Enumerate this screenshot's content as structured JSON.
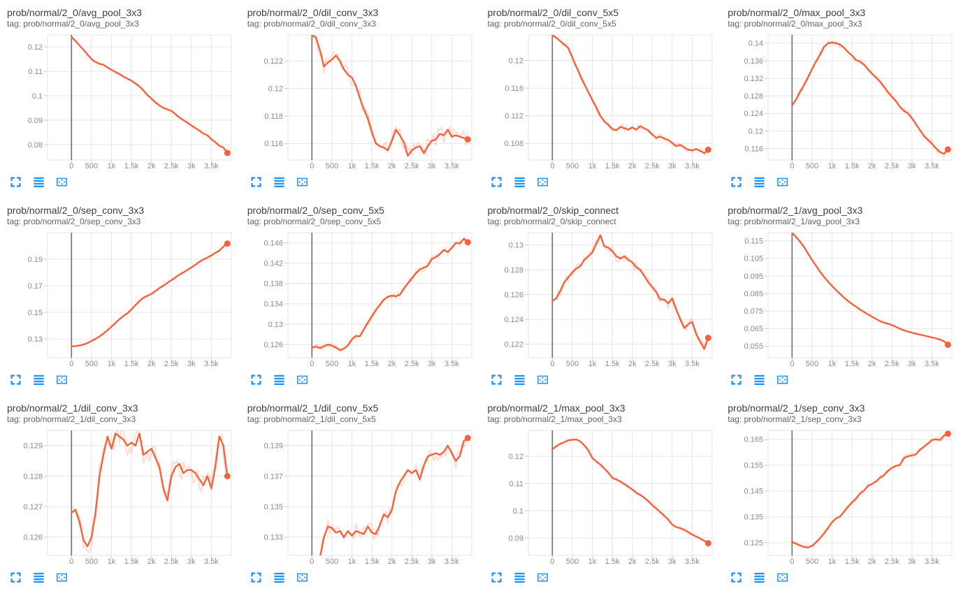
{
  "page": {
    "background": "#ffffff"
  },
  "colors": {
    "accent": "#f6623c",
    "accent_faint": "rgba(246,98,60,0.22)",
    "icon_blue": "#2196f3",
    "grid": "#e6e6e6",
    "tick": "#c9c9c9",
    "axis_text": "#8a8a8a",
    "zero_line": "#6e6e6e",
    "title_text": "#3d3d3d",
    "tag_text": "#616161"
  },
  "x_axis": {
    "xlim": [
      -600,
      4000
    ],
    "tick_values": [
      0,
      500,
      1000,
      1500,
      2000,
      2500,
      3000,
      3500
    ],
    "tick_labels": [
      "0",
      "500",
      "1k",
      "1.5k",
      "2k",
      "2.5k",
      "3k",
      "3.5k"
    ]
  },
  "card_icons": [
    {
      "name": "fullscreen-icon"
    },
    {
      "name": "data-series-icon"
    },
    {
      "name": "fit-domain-icon"
    }
  ],
  "chart_data": [
    {
      "type": "line",
      "title": "prob/normal/2_0/avg_pool_3x3",
      "tag": "tag: prob/normal/2_0/avg_pool_3x3",
      "y_ticks": [
        "0.12",
        "0.11",
        "0.1",
        "0.09",
        "0.08"
      ],
      "ylim": [
        0.0737,
        0.1249
      ],
      "x0": 0,
      "dx": 100,
      "noise": 0.0003,
      "values": [
        0.1241,
        0.1224,
        0.1206,
        0.1188,
        0.1169,
        0.115,
        0.1138,
        0.1131,
        0.1127,
        0.1116,
        0.1106,
        0.1097,
        0.1089,
        0.1078,
        0.107,
        0.1062,
        0.105,
        0.1038,
        0.1022,
        0.1003,
        0.0988,
        0.0973,
        0.096,
        0.095,
        0.0944,
        0.0938,
        0.0925,
        0.0911,
        0.09,
        0.089,
        0.0878,
        0.0868,
        0.0857,
        0.0845,
        0.0838,
        0.0822,
        0.081,
        0.0795,
        0.0788,
        0.0766
      ]
    },
    {
      "type": "line",
      "title": "prob/normal/2_0/dil_conv_3x3",
      "tag": "tag: prob/normal/2_0/dil_conv_3x3",
      "y_ticks": [
        "0.122",
        "0.12",
        "0.118",
        "0.116"
      ],
      "ylim": [
        0.1148,
        0.1239
      ],
      "x0": 0,
      "dx": 100,
      "noise": 0.0006,
      "values": [
        0.1239,
        0.1237,
        0.1228,
        0.1216,
        0.1219,
        0.1221,
        0.1224,
        0.122,
        0.1214,
        0.121,
        0.1208,
        0.1202,
        0.1193,
        0.1185,
        0.1178,
        0.1168,
        0.116,
        0.1158,
        0.1157,
        0.1155,
        0.1162,
        0.117,
        0.1166,
        0.1161,
        0.1151,
        0.1155,
        0.1157,
        0.1158,
        0.1153,
        0.1158,
        0.1162,
        0.1163,
        0.1167,
        0.1166,
        0.117,
        0.1165,
        0.1166,
        0.1165,
        0.1164,
        0.1163
      ]
    },
    {
      "type": "line",
      "title": "prob/normal/2_0/dil_conv_5x5",
      "tag": "tag: prob/normal/2_0/dil_conv_5x5",
      "y_ticks": [
        "0.12",
        "0.116",
        "0.112",
        "0.108"
      ],
      "ylim": [
        0.1056,
        0.1237
      ],
      "x0": 0,
      "dx": 100,
      "noise": 0.0004,
      "values": [
        0.1237,
        0.1233,
        0.1228,
        0.1223,
        0.1218,
        0.1204,
        0.1191,
        0.1178,
        0.1166,
        0.1154,
        0.1143,
        0.1132,
        0.112,
        0.1112,
        0.1107,
        0.1101,
        0.1099,
        0.1104,
        0.1102,
        0.11,
        0.1103,
        0.11,
        0.1105,
        0.1102,
        0.1099,
        0.1093,
        0.1088,
        0.109,
        0.1087,
        0.1085,
        0.1081,
        0.1076,
        0.1078,
        0.1074,
        0.1071,
        0.107,
        0.1072,
        0.1069,
        0.1066,
        0.1071
      ]
    },
    {
      "type": "line",
      "title": "prob/normal/2_0/max_pool_3x3",
      "tag": "tag: prob/normal/2_0/max_pool_3x3",
      "y_ticks": [
        "0.14",
        "0.136",
        "0.132",
        "0.128",
        "0.124",
        "0.12",
        "0.116"
      ],
      "ylim": [
        0.1134,
        0.1419
      ],
      "x0": 0,
      "dx": 100,
      "noise": 0.0007,
      "values": [
        0.1258,
        0.1272,
        0.1289,
        0.1305,
        0.1323,
        0.1341,
        0.1359,
        0.1374,
        0.1392,
        0.14,
        0.1402,
        0.14,
        0.1397,
        0.139,
        0.138,
        0.1372,
        0.1362,
        0.1358,
        0.1351,
        0.1341,
        0.1331,
        0.1322,
        0.1313,
        0.1301,
        0.1288,
        0.1278,
        0.1268,
        0.1255,
        0.1246,
        0.124,
        0.1229,
        0.1216,
        0.1202,
        0.1189,
        0.118,
        0.1171,
        0.1161,
        0.1152,
        0.1148,
        0.1158
      ]
    },
    {
      "type": "line",
      "title": "prob/normal/2_0/sep_conv_3x3",
      "tag": "tag: prob/normal/2_0/sep_conv_3x3",
      "y_ticks": [
        "0.19",
        "0.17",
        "0.15",
        "0.13"
      ],
      "ylim": [
        0.1158,
        0.21
      ],
      "x0": 0,
      "dx": 100,
      "noise": 0.0008,
      "values": [
        0.1243,
        0.1246,
        0.125,
        0.1258,
        0.1268,
        0.1285,
        0.13,
        0.1318,
        0.134,
        0.1365,
        0.1392,
        0.142,
        0.1448,
        0.1472,
        0.1492,
        0.1522,
        0.1555,
        0.1585,
        0.161,
        0.1625,
        0.1638,
        0.166,
        0.1682,
        0.17,
        0.1722,
        0.1742,
        0.1762,
        0.1785,
        0.18,
        0.182,
        0.1838,
        0.1858,
        0.188,
        0.1898,
        0.1912,
        0.1928,
        0.1948,
        0.1965,
        0.1995,
        0.2018
      ]
    },
    {
      "type": "line",
      "title": "prob/normal/2_0/sep_conv_5x5",
      "tag": "tag: prob/normal/2_0/sep_conv_5x5",
      "y_ticks": [
        "0.146",
        "0.142",
        "0.138",
        "0.134",
        "0.13",
        "0.126"
      ],
      "ylim": [
        0.1234,
        0.148
      ],
      "x0": 0,
      "dx": 100,
      "noise": 0.0006,
      "values": [
        0.1254,
        0.1256,
        0.1253,
        0.1257,
        0.126,
        0.1258,
        0.1254,
        0.1249,
        0.1252,
        0.1258,
        0.127,
        0.1277,
        0.1276,
        0.129,
        0.1303,
        0.1316,
        0.1328,
        0.1338,
        0.1348,
        0.1354,
        0.1356,
        0.1355,
        0.1358,
        0.137,
        0.138,
        0.139,
        0.14,
        0.1408,
        0.1411,
        0.1415,
        0.1428,
        0.1432,
        0.1438,
        0.1446,
        0.1442,
        0.145,
        0.146,
        0.1459,
        0.1468,
        0.1461
      ]
    },
    {
      "type": "line",
      "title": "prob/normal/2_0/skip_connect",
      "tag": "tag: prob/normal/2_0/skip_connect",
      "y_ticks": [
        "0.13",
        "0.128",
        "0.126",
        "0.124",
        "0.122"
      ],
      "ylim": [
        0.1209,
        0.131
      ],
      "x0": 0,
      "dx": 100,
      "noise": 0.0004,
      "values": [
        0.1255,
        0.1257,
        0.1263,
        0.127,
        0.1274,
        0.1278,
        0.1281,
        0.1283,
        0.1288,
        0.1291,
        0.1294,
        0.1301,
        0.1308,
        0.1299,
        0.1298,
        0.1295,
        0.1291,
        0.1289,
        0.1291,
        0.1288,
        0.1286,
        0.1282,
        0.128,
        0.1275,
        0.127,
        0.1266,
        0.1262,
        0.1256,
        0.1256,
        0.1253,
        0.1257,
        0.1248,
        0.124,
        0.1233,
        0.1236,
        0.1238,
        0.1228,
        0.1222,
        0.1216,
        0.1225
      ]
    },
    {
      "type": "line",
      "title": "prob/normal/2_1/avg_pool_3x3",
      "tag": "tag: prob/normal/2_1/avg_pool_3x3",
      "y_ticks": [
        "0.115",
        "0.105",
        "0.095",
        "0.085",
        "0.075",
        "0.065",
        "0.055"
      ],
      "ylim": [
        0.0484,
        0.1197
      ],
      "x0": 0,
      "dx": 100,
      "noise": 0.0004,
      "values": [
        0.1196,
        0.1172,
        0.1146,
        0.1114,
        0.1078,
        0.1041,
        0.1008,
        0.0975,
        0.0945,
        0.0918,
        0.0893,
        0.087,
        0.0848,
        0.0827,
        0.0808,
        0.079,
        0.0775,
        0.0758,
        0.0745,
        0.0731,
        0.0718,
        0.0705,
        0.0693,
        0.0684,
        0.0678,
        0.0671,
        0.066,
        0.0649,
        0.064,
        0.0633,
        0.0627,
        0.0621,
        0.0616,
        0.0611,
        0.0605,
        0.06,
        0.0594,
        0.0588,
        0.0578,
        0.0558
      ]
    },
    {
      "type": "line",
      "title": "prob/normal/2_1/dil_conv_3x3",
      "tag": "tag: prob/normal/2_1/dil_conv_3x3",
      "y_ticks": [
        "0.129",
        "0.128",
        "0.127",
        "0.126"
      ],
      "ylim": [
        0.1254,
        0.1295
      ],
      "x0": 0,
      "dx": 100,
      "noise": 0.0004,
      "values": [
        0.1268,
        0.1269,
        0.1265,
        0.1259,
        0.1257,
        0.126,
        0.1268,
        0.128,
        0.1287,
        0.1293,
        0.1289,
        0.1294,
        0.1293,
        0.1292,
        0.129,
        0.1291,
        0.129,
        0.1294,
        0.1287,
        0.1288,
        0.1289,
        0.1286,
        0.1283,
        0.1276,
        0.1272,
        0.128,
        0.1283,
        0.1284,
        0.1281,
        0.1282,
        0.1282,
        0.1281,
        0.1279,
        0.1277,
        0.128,
        0.1276,
        0.1283,
        0.1293,
        0.129,
        0.128
      ]
    },
    {
      "type": "line",
      "title": "prob/normal/2_1/dil_conv_5x5",
      "tag": "tag: prob/normal/2_1/dil_conv_5x5",
      "y_ticks": [
        "0.139",
        "0.137",
        "0.135",
        "0.133"
      ],
      "ylim": [
        0.1318,
        0.14
      ],
      "x0": 200,
      "dx": 100,
      "noise": 0.0005,
      "values": [
        0.1316,
        0.133,
        0.1337,
        0.1336,
        0.1333,
        0.1334,
        0.133,
        0.1334,
        0.1331,
        0.1334,
        0.1333,
        0.1332,
        0.1337,
        0.1333,
        0.1332,
        0.1338,
        0.1345,
        0.1343,
        0.1348,
        0.136,
        0.1366,
        0.137,
        0.1374,
        0.1372,
        0.1374,
        0.1368,
        0.1377,
        0.1383,
        0.1384,
        0.1385,
        0.1384,
        0.1386,
        0.139,
        0.1385,
        0.138,
        0.1383,
        0.1393,
        0.1395
      ]
    },
    {
      "type": "line",
      "title": "prob/normal/2_1/max_pool_3x3",
      "tag": "tag: prob/normal/2_1/max_pool_3x3",
      "y_ticks": [
        "0.12",
        "0.11",
        "0.1",
        "0.09"
      ],
      "ylim": [
        0.0836,
        0.1295
      ],
      "x0": 0,
      "dx": 100,
      "noise": 0.0006,
      "values": [
        0.1226,
        0.1237,
        0.1246,
        0.1252,
        0.1258,
        0.1261,
        0.1262,
        0.1254,
        0.124,
        0.1222,
        0.1194,
        0.118,
        0.117,
        0.1155,
        0.114,
        0.1121,
        0.1115,
        0.1108,
        0.1098,
        0.1088,
        0.1078,
        0.1066,
        0.1058,
        0.1048,
        0.1035,
        0.1021,
        0.1008,
        0.0995,
        0.0982,
        0.0968,
        0.0949,
        0.094,
        0.0936,
        0.093,
        0.0922,
        0.0913,
        0.0905,
        0.0898,
        0.089,
        0.0881
      ]
    },
    {
      "type": "line",
      "title": "prob/normal/2_1/sep_conv_3x3",
      "tag": "tag: prob/normal/2_1/sep_conv_3x3",
      "y_ticks": [
        "0.165",
        "0.155",
        "0.145",
        "0.135",
        "0.125"
      ],
      "ylim": [
        0.1201,
        0.1685
      ],
      "x0": 0,
      "dx": 100,
      "noise": 0.0009,
      "values": [
        0.1253,
        0.1246,
        0.124,
        0.1234,
        0.1232,
        0.1238,
        0.1252,
        0.1268,
        0.1286,
        0.1308,
        0.133,
        0.1344,
        0.1352,
        0.137,
        0.139,
        0.1406,
        0.1422,
        0.144,
        0.1452,
        0.147,
        0.1478,
        0.1488,
        0.1502,
        0.1512,
        0.1528,
        0.154,
        0.1548,
        0.1552,
        0.1578,
        0.1585,
        0.1588,
        0.1592,
        0.161,
        0.1622,
        0.1634,
        0.1648,
        0.165,
        0.1648,
        0.1665,
        0.1672
      ]
    }
  ]
}
